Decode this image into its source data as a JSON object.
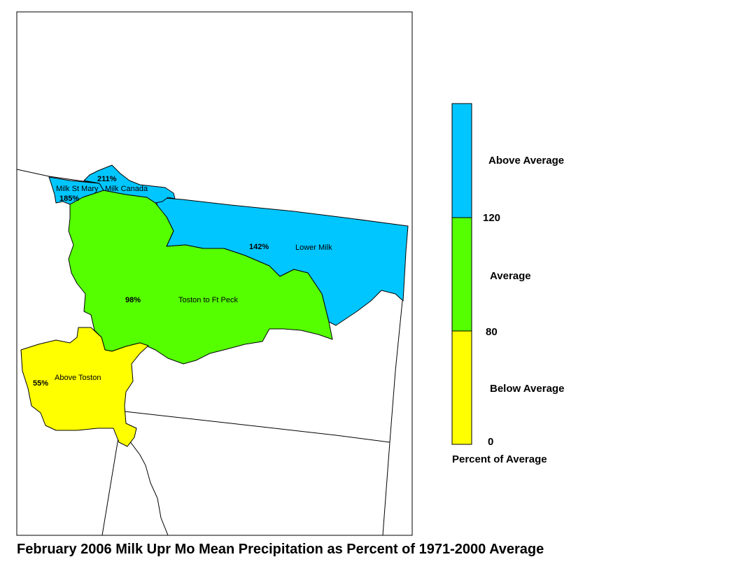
{
  "title": "February 2006 Milk Upr Mo Mean Precipitation as Percent of 1971-2000 Average",
  "colors": {
    "above": "#00c6ff",
    "average": "#55ff00",
    "below": "#ffff00"
  },
  "regions": [
    {
      "id": "milk-st-mary",
      "name": "Milk St Mary",
      "percent": "185%",
      "category": "above"
    },
    {
      "id": "milk-canada",
      "name": "Milk Canada",
      "percent": "211%",
      "category": "above"
    },
    {
      "id": "lower-milk",
      "name": "Lower Milk",
      "percent": "142%",
      "category": "above"
    },
    {
      "id": "toston-ft-peck",
      "name": "Toston to Ft Peck",
      "percent": "98%",
      "category": "average"
    },
    {
      "id": "above-toston",
      "name": "Above Toston",
      "percent": "55%",
      "category": "below"
    }
  ],
  "legend": {
    "categories": [
      {
        "label": "Above Average",
        "color": "#00c6ff"
      },
      {
        "label": "Average",
        "color": "#55ff00"
      },
      {
        "label": "Below Average",
        "color": "#ffff00"
      }
    ],
    "breaks": [
      "120",
      "80",
      "0"
    ],
    "caption": "Percent of Average"
  }
}
